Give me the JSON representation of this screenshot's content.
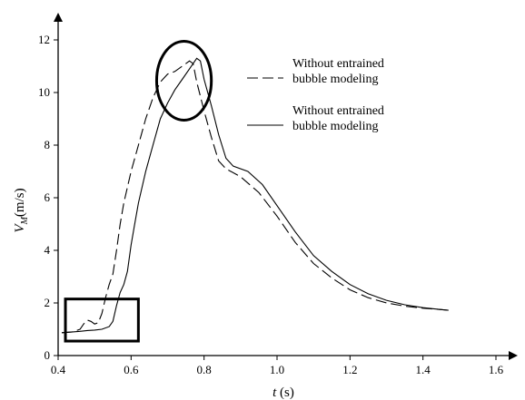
{
  "chart_data": {
    "type": "line",
    "title": "",
    "xlabel": "t (s)",
    "xlabel_var": "t",
    "xlabel_unit": "(s)",
    "ylabel": "VM (m/s)",
    "ylabel_var": "V",
    "ylabel_sub": "M",
    "ylabel_unit": "(m/s)",
    "xlim": [
      0.4,
      1.6
    ],
    "ylim": [
      0,
      12
    ],
    "xticks": [
      0.4,
      0.6,
      0.8,
      1.0,
      1.2,
      1.4,
      1.6
    ],
    "xtick_labels": [
      "0.4",
      "0.6",
      "0.8",
      "1.0",
      "1.2",
      "1.4",
      "1.6"
    ],
    "yticks": [
      0,
      2,
      4,
      6,
      8,
      10,
      12
    ],
    "ytick_labels": [
      "0",
      "2",
      "4",
      "6",
      "8",
      "10",
      "12"
    ],
    "grid": false,
    "legend_position": "right",
    "series": [
      {
        "name": "Without entrained bubble modeling",
        "style": "dashed",
        "points": [
          [
            0.41,
            0.87
          ],
          [
            0.44,
            0.9
          ],
          [
            0.46,
            1.0
          ],
          [
            0.47,
            1.2
          ],
          [
            0.48,
            1.35
          ],
          [
            0.49,
            1.3
          ],
          [
            0.5,
            1.2
          ],
          [
            0.51,
            1.25
          ],
          [
            0.52,
            1.6
          ],
          [
            0.53,
            2.2
          ],
          [
            0.54,
            2.7
          ],
          [
            0.55,
            3.1
          ],
          [
            0.56,
            4.0
          ],
          [
            0.57,
            5.0
          ],
          [
            0.58,
            5.8
          ],
          [
            0.59,
            6.4
          ],
          [
            0.6,
            7.0
          ],
          [
            0.62,
            8.0
          ],
          [
            0.64,
            9.0
          ],
          [
            0.66,
            9.8
          ],
          [
            0.68,
            10.4
          ],
          [
            0.7,
            10.7
          ],
          [
            0.72,
            10.8
          ],
          [
            0.74,
            11.0
          ],
          [
            0.76,
            11.2
          ],
          [
            0.77,
            11.1
          ],
          [
            0.78,
            10.4
          ],
          [
            0.8,
            9.3
          ],
          [
            0.82,
            8.3
          ],
          [
            0.84,
            7.4
          ],
          [
            0.86,
            7.1
          ],
          [
            0.9,
            6.8
          ],
          [
            0.95,
            6.2
          ],
          [
            1.0,
            5.3
          ],
          [
            1.05,
            4.3
          ],
          [
            1.1,
            3.5
          ],
          [
            1.15,
            2.95
          ],
          [
            1.2,
            2.5
          ],
          [
            1.25,
            2.2
          ],
          [
            1.3,
            2.0
          ],
          [
            1.35,
            1.88
          ],
          [
            1.4,
            1.8
          ],
          [
            1.45,
            1.75
          ],
          [
            1.47,
            1.72
          ]
        ]
      },
      {
        "name": "Without entrained bubble modeling",
        "style": "solid",
        "points": [
          [
            0.41,
            0.87
          ],
          [
            0.44,
            0.9
          ],
          [
            0.46,
            0.92
          ],
          [
            0.48,
            0.95
          ],
          [
            0.5,
            0.97
          ],
          [
            0.52,
            1.0
          ],
          [
            0.54,
            1.1
          ],
          [
            0.55,
            1.3
          ],
          [
            0.56,
            1.9
          ],
          [
            0.57,
            2.4
          ],
          [
            0.58,
            2.7
          ],
          [
            0.59,
            3.2
          ],
          [
            0.6,
            4.2
          ],
          [
            0.61,
            5.0
          ],
          [
            0.62,
            5.8
          ],
          [
            0.64,
            7.0
          ],
          [
            0.66,
            8.0
          ],
          [
            0.68,
            9.0
          ],
          [
            0.7,
            9.6
          ],
          [
            0.72,
            10.1
          ],
          [
            0.74,
            10.5
          ],
          [
            0.76,
            10.9
          ],
          [
            0.78,
            11.3
          ],
          [
            0.79,
            11.2
          ],
          [
            0.8,
            10.5
          ],
          [
            0.82,
            9.5
          ],
          [
            0.84,
            8.4
          ],
          [
            0.86,
            7.5
          ],
          [
            0.88,
            7.2
          ],
          [
            0.92,
            7.0
          ],
          [
            0.96,
            6.5
          ],
          [
            1.0,
            5.7
          ],
          [
            1.05,
            4.7
          ],
          [
            1.1,
            3.8
          ],
          [
            1.15,
            3.2
          ],
          [
            1.2,
            2.7
          ],
          [
            1.25,
            2.35
          ],
          [
            1.3,
            2.1
          ],
          [
            1.35,
            1.93
          ],
          [
            1.4,
            1.82
          ],
          [
            1.45,
            1.75
          ],
          [
            1.47,
            1.72
          ]
        ]
      }
    ],
    "legend": [
      {
        "lines": [
          "Without entrained",
          "bubble modeling"
        ],
        "style": "dashed"
      },
      {
        "lines": [
          "Without entrained",
          "bubble modeling"
        ],
        "style": "solid"
      }
    ],
    "annotations": [
      {
        "shape": "rectangle",
        "x": [
          0.42,
          0.62
        ],
        "y": [
          0.55,
          2.15
        ]
      },
      {
        "shape": "ellipse",
        "cx": 0.745,
        "cy": 10.45,
        "rx": 0.075,
        "ry": 1.5
      }
    ]
  }
}
